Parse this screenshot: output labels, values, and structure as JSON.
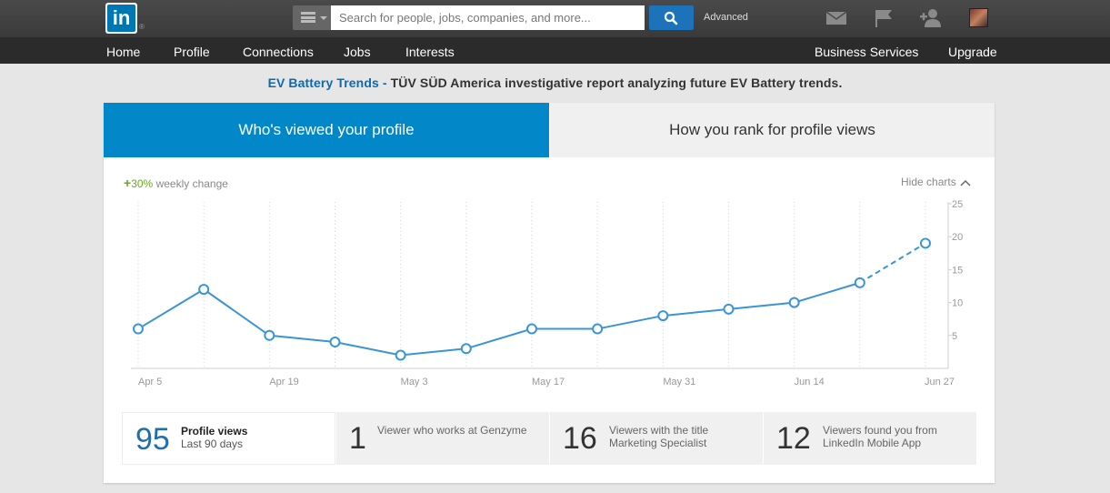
{
  "topbar": {
    "logo_text": "in",
    "logo_mark": "®",
    "menu_icon": "menu-bars-icon",
    "search_placeholder": "Search for people, jobs, companies, and more...",
    "search_icon": "search-icon",
    "advanced_label": "Advanced",
    "icons": [
      "envelope-icon",
      "flag-icon",
      "add-connection-icon"
    ],
    "avatar": "avatar"
  },
  "subnav": {
    "left": [
      "Home",
      "Profile",
      "Connections",
      "Jobs",
      "Interests"
    ],
    "right": [
      "Business Services",
      "Upgrade"
    ]
  },
  "ad": {
    "title": "EV Battery Trends -",
    "text": "TÜV SÜD America investigative report analyzing future EV Battery trends."
  },
  "tabs": {
    "active": "Who's viewed your profile",
    "inactive": "How you rank for profile views"
  },
  "weekly_change": {
    "sign": "+",
    "value": "30%",
    "label": "weekly change"
  },
  "hide_charts_label": "Hide charts",
  "chart_data": {
    "type": "line",
    "x": [
      "Apr 5",
      "Apr 12",
      "Apr 19",
      "Apr 26",
      "May 3",
      "May 10",
      "May 17",
      "May 24",
      "May 31",
      "Jun 7",
      "Jun 14",
      "Jun 21",
      "Jun 27"
    ],
    "x_tick_labels": [
      "Apr 5",
      "Apr 19",
      "May 3",
      "May 17",
      "May 31",
      "Jun 14",
      "Jun 27"
    ],
    "values": [
      6,
      12,
      5,
      4,
      2,
      3,
      6,
      6,
      8,
      9,
      10,
      13,
      19
    ],
    "projected_last_segment": true,
    "y_ticks": [
      5,
      10,
      15,
      20,
      25
    ],
    "ylim": [
      0,
      25
    ],
    "grid": "vertical dotted",
    "color": "#3a94d8"
  },
  "stats": [
    {
      "number": "95",
      "label_main": "Profile views",
      "label_sub": "Last 90 days"
    },
    {
      "number": "1",
      "label": "Viewer who works at Genzyme"
    },
    {
      "number": "16",
      "label": "Viewers with the title\nMarketing Specialist"
    },
    {
      "number": "12",
      "label": "Viewers found you from\nLinkedIn Mobile App"
    }
  ]
}
